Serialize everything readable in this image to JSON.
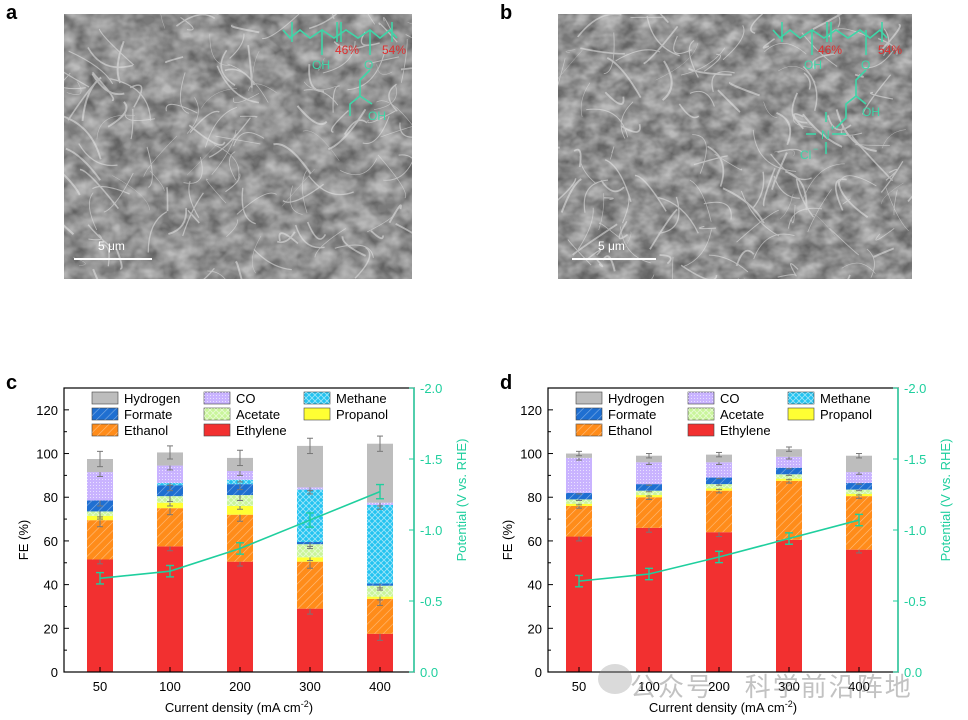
{
  "panels": {
    "a": {
      "letter": "a",
      "scalebar": "5 μm",
      "chem": {
        "pct1": "46%",
        "pct2": "54%",
        "oh1": "OH",
        "o": "O",
        "oh2": "OH"
      }
    },
    "b": {
      "letter": "b",
      "scalebar": "5 μm",
      "chem": {
        "pct1": "46%",
        "pct2": "54%",
        "oh1": "OH",
        "o": "O",
        "oh2": "OH",
        "n": "N",
        "nplus": "+",
        "cl": "Cl",
        "clminus": "−"
      }
    },
    "c": {
      "letter": "c"
    },
    "d": {
      "letter": "d"
    }
  },
  "colors": {
    "Hydrogen": "#bdbdbd",
    "CO": "#c9b3ff",
    "Methane": "#24c3f0",
    "Formate": "#1f6fd1",
    "Acetate": "#c9f59a",
    "Propanol": "#ffff33",
    "Ethanol": "#ff8c1a",
    "Ethylene": "#f23030",
    "potential": "#1fcf9e",
    "chem": "#3ed6a8",
    "chem_pct": "#e03030"
  },
  "watermark": "公众号 · 科学前沿阵地",
  "chart_data": [
    {
      "type": "bar",
      "panel": "c",
      "stacked": true,
      "categories": [
        "50",
        "100",
        "200",
        "300",
        "400"
      ],
      "xlabel": "Current density (mA cm",
      "xlabel_sup": "-2",
      "xlabel_end": ")",
      "ylabel": "FE (%)",
      "ylim": [
        0,
        130
      ],
      "yticks": [
        "0",
        "20",
        "40",
        "60",
        "80",
        "100",
        "120"
      ],
      "y2label": "Potential (V vs. RHE)",
      "y2ticks": [
        "0.0",
        "-0.5",
        "-1.0",
        "-1.5",
        "-2.0"
      ],
      "y2lim": [
        0,
        -2.0
      ],
      "legend": [
        "Hydrogen",
        "CO",
        "Methane",
        "Formate",
        "Acetate",
        "Propanol",
        "Ethanol",
        "Ethylene"
      ],
      "series": [
        {
          "name": "Ethylene",
          "values": [
            51.5,
            57.5,
            50.5,
            29,
            17.5
          ]
        },
        {
          "name": "Ethanol",
          "values": [
            18,
            17.5,
            21.5,
            21.5,
            16
          ]
        },
        {
          "name": "Propanol",
          "values": [
            2,
            2.5,
            4,
            2,
            1
          ]
        },
        {
          "name": "Acetate",
          "values": [
            2,
            3,
            5,
            6,
            5
          ]
        },
        {
          "name": "Formate",
          "values": [
            5,
            5,
            5,
            1,
            1
          ]
        },
        {
          "name": "Methane",
          "values": [
            0,
            1,
            2,
            24,
            36
          ]
        },
        {
          "name": "CO",
          "values": [
            13,
            8,
            4,
            1,
            1
          ]
        },
        {
          "name": "Hydrogen",
          "values": [
            6,
            6,
            6,
            19,
            27
          ]
        }
      ],
      "errors": [
        [
          2,
          3,
          1.5,
          2.5,
          2.5,
          0,
          2,
          3.5
        ],
        [
          2,
          3,
          1.5,
          2.5,
          2.5,
          1,
          2,
          3
        ],
        [
          2,
          3,
          1.5,
          2.5,
          2.5,
          1,
          2,
          3.5
        ],
        [
          2.5,
          3,
          1.5,
          2,
          2,
          2,
          1.5,
          3.5
        ],
        [
          3,
          3,
          1.5,
          2,
          2,
          2,
          1.5,
          3.5
        ]
      ],
      "potential": {
        "values": [
          -0.66,
          -0.71,
          -0.87,
          -1.07,
          -1.27
        ],
        "errors": [
          0.04,
          0.04,
          0.04,
          0.05,
          0.05
        ]
      }
    },
    {
      "type": "bar",
      "panel": "d",
      "stacked": true,
      "categories": [
        "50",
        "100",
        "200",
        "300",
        "400"
      ],
      "xlabel": "Current density (mA cm",
      "xlabel_sup": "-2",
      "xlabel_end": ")",
      "ylabel": "FE (%)",
      "ylim": [
        0,
        130
      ],
      "yticks": [
        "0",
        "20",
        "40",
        "60",
        "80",
        "100",
        "120"
      ],
      "y2label": "Potential (V vs. RHE)",
      "y2ticks": [
        "0.0",
        "-0.5",
        "-1.0",
        "-1.5",
        "-2.0"
      ],
      "y2lim": [
        0,
        -2.0
      ],
      "legend": [
        "Hydrogen",
        "CO",
        "Methane",
        "Formate",
        "Acetate",
        "Propanol",
        "Ethanol",
        "Ethylene"
      ],
      "series": [
        {
          "name": "Ethylene",
          "values": [
            62,
            66,
            64,
            60.5,
            56
          ]
        },
        {
          "name": "Ethanol",
          "values": [
            14,
            14,
            19,
            27,
            24.5
          ]
        },
        {
          "name": "Propanol",
          "values": [
            1,
            1,
            1,
            1,
            1
          ]
        },
        {
          "name": "Acetate",
          "values": [
            2,
            2,
            2,
            2,
            2
          ]
        },
        {
          "name": "Formate",
          "values": [
            3,
            3,
            3,
            3,
            3
          ]
        },
        {
          "name": "Methane",
          "values": [
            0,
            0,
            0,
            0,
            0
          ]
        },
        {
          "name": "CO",
          "values": [
            16,
            10,
            7,
            5,
            5
          ]
        },
        {
          "name": "Hydrogen",
          "values": [
            2,
            3,
            3.5,
            3.5,
            7.5
          ]
        }
      ],
      "errors": [
        [
          2,
          1,
          0.5,
          0.5,
          0.5,
          0,
          1,
          1
        ],
        [
          2,
          1,
          0.5,
          0.5,
          0.5,
          0,
          1,
          1
        ],
        [
          2,
          1,
          0.5,
          0.5,
          0.5,
          0,
          1,
          1
        ],
        [
          2,
          1,
          0.5,
          0.5,
          0.5,
          0,
          1,
          1
        ],
        [
          1.5,
          1,
          0.5,
          0.5,
          0.5,
          0,
          1,
          1
        ]
      ],
      "potential": {
        "values": [
          -0.64,
          -0.69,
          -0.81,
          -0.94,
          -1.07
        ],
        "errors": [
          0.04,
          0.04,
          0.04,
          0.04,
          0.04
        ]
      }
    }
  ]
}
